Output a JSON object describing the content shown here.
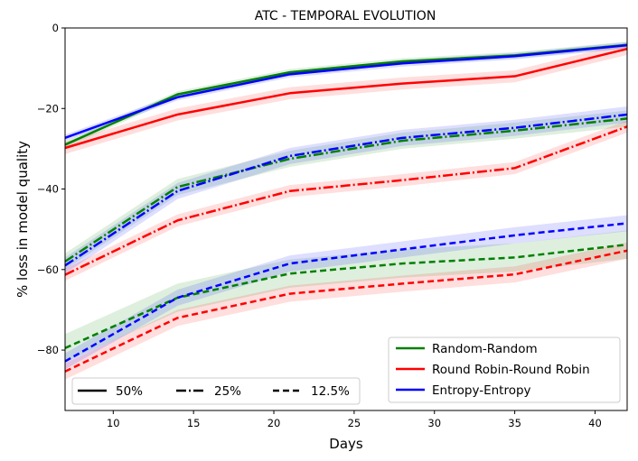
{
  "chart_data": {
    "type": "line",
    "title": "ATC - TEMPORAL EVOLUTION",
    "xlabel": "Days",
    "ylabel": "% loss in model quality",
    "xlim": [
      7,
      42
    ],
    "ylim": [
      -95,
      0
    ],
    "xticks": [
      10,
      15,
      20,
      25,
      30,
      35,
      40
    ],
    "yticks": [
      0,
      -20,
      -40,
      -60,
      -80
    ],
    "grid": false,
    "x": [
      7,
      14,
      21,
      28,
      35,
      42
    ],
    "methods": [
      {
        "name": "Random-Random",
        "color": "#008000"
      },
      {
        "name": "Round Robin-Round Robin",
        "color": "#ff0000"
      },
      {
        "name": "Entropy-Entropy",
        "color": "#0000ff"
      }
    ],
    "fractions": [
      {
        "name": "50%",
        "style": "solid"
      },
      {
        "name": "25%",
        "style": "dashdot"
      },
      {
        "name": "12.5%",
        "style": "dashed"
      }
    ],
    "series": [
      {
        "name": "Random-Random 50%",
        "method": 0,
        "fraction": 0,
        "values": [
          -29.0,
          -16.5,
          -11.0,
          -8.3,
          -6.8,
          -4.2
        ],
        "band": 0.8
      },
      {
        "name": "Round Robin-Round Robin 50%",
        "method": 1,
        "fraction": 0,
        "values": [
          -29.8,
          -21.5,
          -16.2,
          -13.8,
          -12.0,
          -5.2
        ],
        "band": 1.5
      },
      {
        "name": "Entropy-Entropy 50%",
        "method": 2,
        "fraction": 0,
        "values": [
          -27.3,
          -17.2,
          -11.5,
          -8.8,
          -7.0,
          -4.3
        ],
        "band": 0.8
      },
      {
        "name": "Random-Random 25%",
        "method": 0,
        "fraction": 1,
        "values": [
          -58.0,
          -39.5,
          -32.5,
          -28.0,
          -25.5,
          -22.5
        ],
        "band": 2.0
      },
      {
        "name": "Round Robin-Round Robin 25%",
        "method": 1,
        "fraction": 1,
        "values": [
          -61.3,
          -47.8,
          -40.5,
          -37.8,
          -34.8,
          -24.5
        ],
        "band": 1.5
      },
      {
        "name": "Entropy-Entropy 25%",
        "method": 2,
        "fraction": 1,
        "values": [
          -59.0,
          -40.5,
          -31.8,
          -27.3,
          -24.8,
          -21.5
        ],
        "band": 2.0
      },
      {
        "name": "Random-Random 12.5%",
        "method": 0,
        "fraction": 2,
        "values": [
          -79.5,
          -67.0,
          -61.0,
          -58.5,
          -57.0,
          -53.8
        ],
        "band": 3.5
      },
      {
        "name": "Round Robin-Round Robin 12.5%",
        "method": 1,
        "fraction": 2,
        "values": [
          -85.3,
          -72.0,
          -66.0,
          -63.5,
          -61.2,
          -55.3
        ],
        "band": 2.0
      },
      {
        "name": "Entropy-Entropy 12.5%",
        "method": 2,
        "fraction": 2,
        "values": [
          -82.8,
          -67.0,
          -58.5,
          -55.0,
          -51.5,
          -48.5
        ],
        "band": 2.0
      }
    ],
    "legends": [
      {
        "placement": "lower-right",
        "entries": [
          "Random-Random",
          "Round Robin-Round Robin",
          "Entropy-Entropy"
        ]
      },
      {
        "placement": "lower-left",
        "entries": [
          "50%",
          "25%",
          "12.5%"
        ]
      }
    ]
  }
}
